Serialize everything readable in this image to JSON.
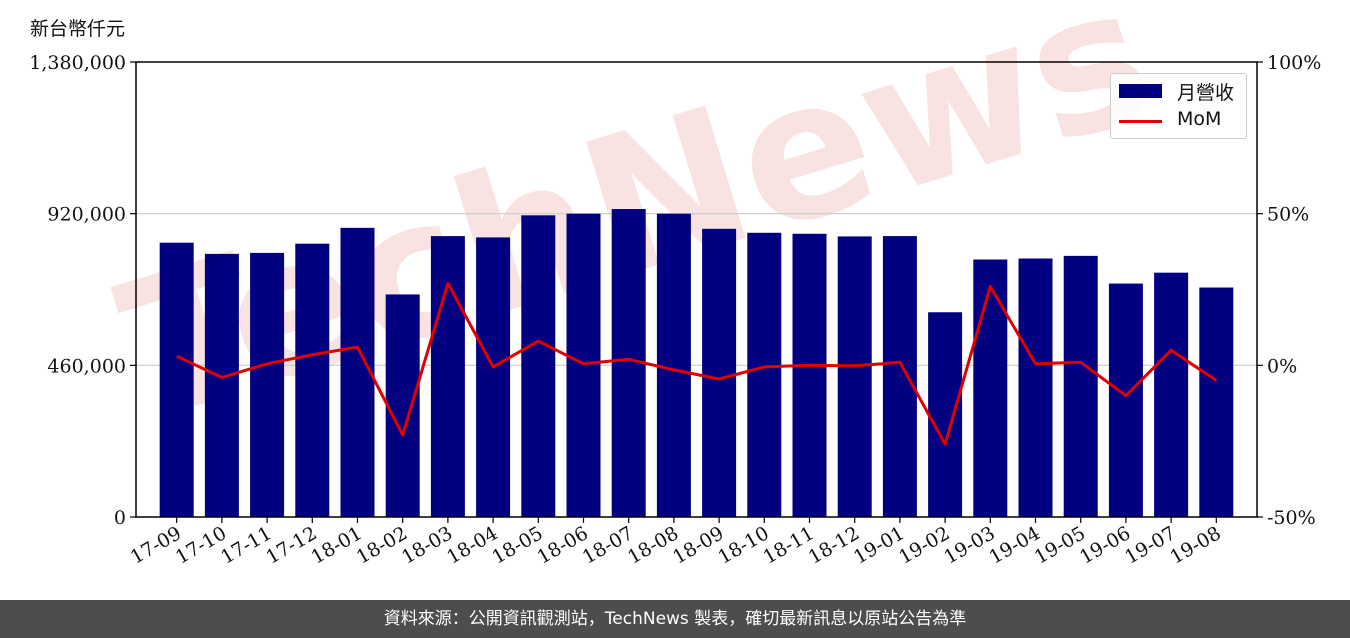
{
  "unit_label": "新台幣仟元",
  "footer": "資料來源：公開資訊觀測站，TechNews 製表，確切最新訊息以原站公告為準",
  "watermark_text": "TechNews",
  "colors": {
    "bar": "#000080",
    "line": "#e00000",
    "grid": "#cccccc",
    "watermark": "#f3cccc"
  },
  "legend": {
    "bar_label": "月營收",
    "line_label": "MoM"
  },
  "chart_data": {
    "type": "bar",
    "categories": [
      "17-09",
      "17-10",
      "17-11",
      "17-12",
      "18-01",
      "18-02",
      "18-03",
      "18-04",
      "18-05",
      "18-06",
      "18-07",
      "18-08",
      "18-09",
      "18-10",
      "18-11",
      "18-12",
      "19-01",
      "19-02",
      "19-03",
      "19-04",
      "19-05",
      "19-06",
      "19-07",
      "19-08"
    ],
    "series": [
      {
        "name": "月營收",
        "type": "bar",
        "axis": "left",
        "values": [
          832000,
          798000,
          801000,
          829000,
          877000,
          675000,
          852000,
          848000,
          915000,
          920000,
          934000,
          920000,
          874000,
          862000,
          859000,
          851000,
          852000,
          621000,
          781000,
          784000,
          792000,
          708000,
          741000,
          696000
        ]
      },
      {
        "name": "MoM",
        "type": "line",
        "axis": "right",
        "values": [
          3,
          -4,
          0.5,
          3.5,
          6,
          -23,
          27,
          -0.5,
          8,
          0.5,
          2,
          -1.5,
          -4.5,
          -0.5,
          0,
          -0.2,
          1,
          -26,
          26,
          0.5,
          1,
          -10,
          5,
          -5
        ]
      }
    ],
    "ylim_left": [
      0,
      1380000
    ],
    "yticks_left": [
      "0",
      "460,000",
      "920,000",
      "1,380,000"
    ],
    "ylim_right": [
      -50,
      100
    ],
    "yticks_right": [
      "-50%",
      "0%",
      "50%",
      "100%"
    ],
    "grid": "horizontal",
    "legend_position": "top-right"
  }
}
